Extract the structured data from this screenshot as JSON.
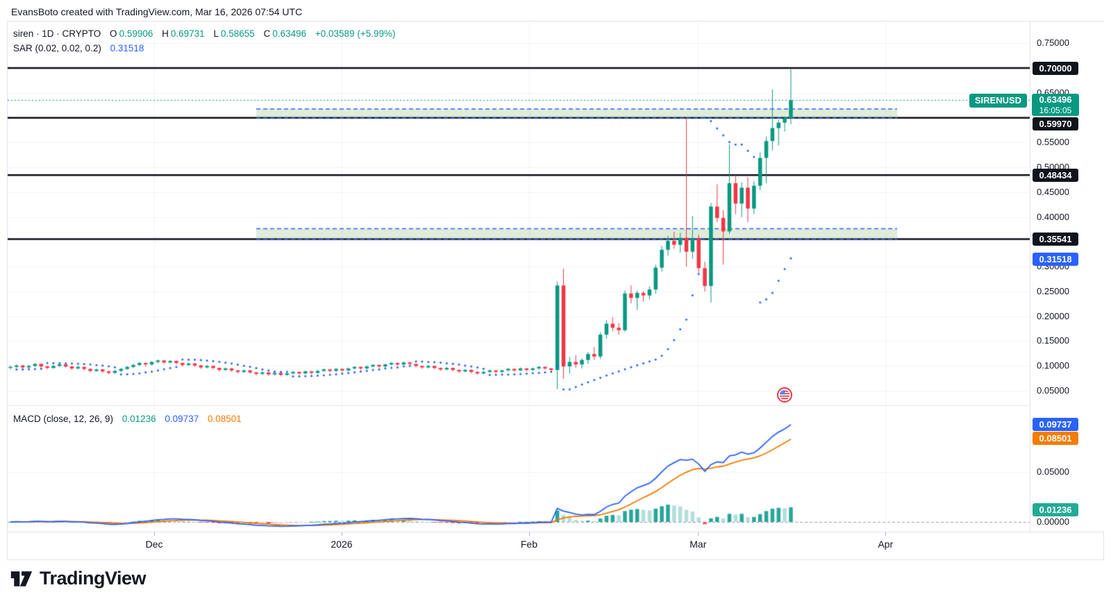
{
  "attribution": "EvansBoto created with TradingView.com, Mar 16, 2026 07:54 UTC",
  "legend": {
    "title": "siren · 1D · CRYPTO",
    "items": [
      {
        "label": "O",
        "value": "0.59906"
      },
      {
        "label": "H",
        "value": "0.69731"
      },
      {
        "label": "L",
        "value": "0.58655"
      },
      {
        "label": "C",
        "value": "0.63496"
      }
    ],
    "change": "+0.03589 (+5.99%)"
  },
  "sar_legend": {
    "name": "SAR (0.02, 0.02, 0.2)",
    "value": "0.31518"
  },
  "macd_legend": {
    "name": "MACD (close, 12, 26, 9)",
    "hist": "0.01236",
    "macd": "0.09737",
    "signal": "0.08501"
  },
  "symbol_badge": {
    "label": "SIRENUSD",
    "price": "0.63496",
    "countdown": "16:05:05",
    "price_value": 0.63496,
    "bg": "#089981"
  },
  "price_axis": {
    "ticks": [
      {
        "label": "0.75000",
        "price": 0.75
      },
      {
        "label": "0.65000",
        "price": 0.65
      },
      {
        "label": "0.55000",
        "price": 0.55
      },
      {
        "label": "0.50000",
        "price": 0.5
      },
      {
        "label": "0.45000",
        "price": 0.45
      },
      {
        "label": "0.40000",
        "price": 0.4
      },
      {
        "label": "0.30000",
        "price": 0.3
      },
      {
        "label": "0.25000",
        "price": 0.25
      },
      {
        "label": "0.20000",
        "price": 0.2
      },
      {
        "label": "0.15000",
        "price": 0.15
      },
      {
        "label": "0.10000",
        "price": 0.1
      },
      {
        "label": "0.05000",
        "price": 0.05
      }
    ],
    "badges": [
      {
        "label": "0.70000",
        "price": 0.7,
        "bg": "#10141c"
      },
      {
        "label": "0.59970",
        "price": 0.5997,
        "bg": "#10141c"
      },
      {
        "label": "0.48434",
        "price": 0.48434,
        "bg": "#10141c"
      },
      {
        "label": "0.35541",
        "price": 0.35541,
        "bg": "#10141c"
      },
      {
        "label": "0.31518",
        "price": 0.31518,
        "bg": "#2962FF"
      }
    ]
  },
  "macd_axis": {
    "ticks": [
      {
        "label": "0.05000",
        "value": 0.05
      },
      {
        "label": "0.00000",
        "value": 0.0
      }
    ],
    "badges": [
      {
        "label": "0.09737",
        "value": 0.09737,
        "bg": "#2962FF"
      },
      {
        "label": "0.08501",
        "value": 0.08501,
        "bg": "#F57C00"
      },
      {
        "label": "0.01236",
        "value": 0.01236,
        "bg": "#22AB94"
      }
    ]
  },
  "logo_text": "TradingView",
  "colors": {
    "up": "#089981",
    "down": "#F23645",
    "sar": "#2962FF",
    "macd_line": "#2962FF",
    "signal_line": "#F57C00",
    "hist_up": "#26A69A",
    "hist_up_fade": "#B2DFDB",
    "hist_down": "#FF5252",
    "hist_down_fade": "#FFCDD2",
    "level": "#0c0f17",
    "grid": "#f0f3fa",
    "zone_fill": "rgba(111,168,80,0.22)",
    "zone_border": "#2962FF",
    "price_line": "#089981",
    "zero_line": "#9aa0aa"
  },
  "chart_data": {
    "type": "candlestick",
    "interval": "1D",
    "symbol": "SIRENUSD",
    "price_line": 0.63496,
    "levels": [
      0.7,
      0.5997,
      0.48434,
      0.35541
    ],
    "zones": [
      {
        "from": 40,
        "to": 144.3,
        "low": 0.5997,
        "high": 0.6175
      },
      {
        "from": 40,
        "to": 144.3,
        "low": 0.35541,
        "high": 0.3765
      }
    ],
    "months": [
      {
        "label": "Dec",
        "i": 23.4
      },
      {
        "label": "2026",
        "i": 53.9
      },
      {
        "label": "Feb",
        "i": 84.4
      },
      {
        "label": "Mar",
        "i": 111.9
      },
      {
        "label": "Apr",
        "i": 142.4
      }
    ],
    "sar_params": [
      0.02,
      0.02,
      0.2
    ],
    "macd_params": [
      12,
      26,
      9
    ],
    "macd_last": {
      "macd": 0.09737,
      "signal": 0.08501,
      "hist": 0.01236
    },
    "event_flag": {
      "i": 126,
      "label": "US economic event"
    },
    "candles": [
      [
        0.096,
        0.101,
        0.093,
        0.098
      ],
      [
        0.098,
        0.103,
        0.096,
        0.101
      ],
      [
        0.101,
        0.102,
        0.094,
        0.097
      ],
      [
        0.097,
        0.102,
        0.095,
        0.1
      ],
      [
        0.1,
        0.106,
        0.098,
        0.104
      ],
      [
        0.104,
        0.105,
        0.096,
        0.099
      ],
      [
        0.099,
        0.101,
        0.093,
        0.096
      ],
      [
        0.096,
        0.102,
        0.094,
        0.1
      ],
      [
        0.1,
        0.105,
        0.098,
        0.103
      ],
      [
        0.103,
        0.104,
        0.096,
        0.099
      ],
      [
        0.099,
        0.1,
        0.092,
        0.095
      ],
      [
        0.095,
        0.1,
        0.093,
        0.098
      ],
      [
        0.098,
        0.099,
        0.091,
        0.094
      ],
      [
        0.094,
        0.096,
        0.087,
        0.09
      ],
      [
        0.09,
        0.095,
        0.088,
        0.093
      ],
      [
        0.093,
        0.094,
        0.086,
        0.089
      ],
      [
        0.089,
        0.091,
        0.083,
        0.086
      ],
      [
        0.086,
        0.092,
        0.084,
        0.09
      ],
      [
        0.09,
        0.096,
        0.088,
        0.094
      ],
      [
        0.094,
        0.1,
        0.092,
        0.098
      ],
      [
        0.098,
        0.104,
        0.096,
        0.102
      ],
      [
        0.102,
        0.108,
        0.1,
        0.106
      ],
      [
        0.106,
        0.107,
        0.099,
        0.103
      ],
      [
        0.103,
        0.11,
        0.101,
        0.108
      ],
      [
        0.108,
        0.113,
        0.105,
        0.111
      ],
      [
        0.111,
        0.112,
        0.104,
        0.107
      ],
      [
        0.107,
        0.112,
        0.105,
        0.11
      ],
      [
        0.11,
        0.111,
        0.103,
        0.106
      ],
      [
        0.106,
        0.107,
        0.099,
        0.102
      ],
      [
        0.102,
        0.107,
        0.1,
        0.105
      ],
      [
        0.105,
        0.106,
        0.098,
        0.101
      ],
      [
        0.101,
        0.102,
        0.094,
        0.097
      ],
      [
        0.097,
        0.102,
        0.095,
        0.1
      ],
      [
        0.1,
        0.101,
        0.093,
        0.096
      ],
      [
        0.096,
        0.097,
        0.089,
        0.092
      ],
      [
        0.092,
        0.097,
        0.09,
        0.095
      ],
      [
        0.095,
        0.096,
        0.088,
        0.091
      ],
      [
        0.091,
        0.092,
        0.085,
        0.088
      ],
      [
        0.088,
        0.093,
        0.086,
        0.091
      ],
      [
        0.091,
        0.092,
        0.084,
        0.087
      ],
      [
        0.087,
        0.088,
        0.081,
        0.084
      ],
      [
        0.084,
        0.089,
        0.082,
        0.087
      ],
      [
        0.087,
        0.088,
        0.08,
        0.083
      ],
      [
        0.083,
        0.088,
        0.081,
        0.086
      ],
      [
        0.086,
        0.087,
        0.079,
        0.082
      ],
      [
        0.082,
        0.087,
        0.08,
        0.085
      ],
      [
        0.085,
        0.09,
        0.083,
        0.088
      ],
      [
        0.088,
        0.089,
        0.082,
        0.085
      ],
      [
        0.085,
        0.091,
        0.083,
        0.089
      ],
      [
        0.089,
        0.09,
        0.083,
        0.086
      ],
      [
        0.086,
        0.092,
        0.084,
        0.09
      ],
      [
        0.09,
        0.095,
        0.088,
        0.093
      ],
      [
        0.093,
        0.094,
        0.087,
        0.09
      ],
      [
        0.09,
        0.096,
        0.088,
        0.094
      ],
      [
        0.094,
        0.095,
        0.088,
        0.091
      ],
      [
        0.091,
        0.097,
        0.089,
        0.095
      ],
      [
        0.095,
        0.1,
        0.093,
        0.098
      ],
      [
        0.098,
        0.099,
        0.092,
        0.095
      ],
      [
        0.095,
        0.101,
        0.093,
        0.099
      ],
      [
        0.099,
        0.104,
        0.097,
        0.102
      ],
      [
        0.102,
        0.103,
        0.096,
        0.099
      ],
      [
        0.099,
        0.105,
        0.097,
        0.103
      ],
      [
        0.103,
        0.108,
        0.101,
        0.106
      ],
      [
        0.106,
        0.107,
        0.1,
        0.103
      ],
      [
        0.103,
        0.109,
        0.101,
        0.107
      ],
      [
        0.107,
        0.108,
        0.101,
        0.104
      ],
      [
        0.104,
        0.105,
        0.097,
        0.1
      ],
      [
        0.1,
        0.101,
        0.094,
        0.097
      ],
      [
        0.097,
        0.102,
        0.095,
        0.1
      ],
      [
        0.1,
        0.101,
        0.093,
        0.096
      ],
      [
        0.096,
        0.097,
        0.09,
        0.093
      ],
      [
        0.093,
        0.098,
        0.091,
        0.096
      ],
      [
        0.096,
        0.097,
        0.089,
        0.092
      ],
      [
        0.092,
        0.093,
        0.086,
        0.089
      ],
      [
        0.089,
        0.094,
        0.087,
        0.092
      ],
      [
        0.092,
        0.093,
        0.085,
        0.088
      ],
      [
        0.088,
        0.089,
        0.082,
        0.085
      ],
      [
        0.085,
        0.09,
        0.083,
        0.088
      ],
      [
        0.088,
        0.093,
        0.086,
        0.091
      ],
      [
        0.091,
        0.092,
        0.085,
        0.088
      ],
      [
        0.088,
        0.093,
        0.086,
        0.091
      ],
      [
        0.091,
        0.096,
        0.089,
        0.094
      ],
      [
        0.094,
        0.095,
        0.088,
        0.091
      ],
      [
        0.091,
        0.097,
        0.09,
        0.095
      ],
      [
        0.095,
        0.096,
        0.089,
        0.092
      ],
      [
        0.092,
        0.097,
        0.09,
        0.095
      ],
      [
        0.095,
        0.1,
        0.093,
        0.098
      ],
      [
        0.098,
        0.099,
        0.092,
        0.095
      ],
      [
        0.095,
        0.096,
        0.089,
        0.092
      ],
      [
        0.092,
        0.27,
        0.053,
        0.262
      ],
      [
        0.262,
        0.296,
        0.074,
        0.099
      ],
      [
        0.099,
        0.118,
        0.085,
        0.108
      ],
      [
        0.108,
        0.122,
        0.096,
        0.103
      ],
      [
        0.103,
        0.115,
        0.095,
        0.112
      ],
      [
        0.112,
        0.128,
        0.104,
        0.124
      ],
      [
        0.124,
        0.138,
        0.112,
        0.119
      ],
      [
        0.119,
        0.168,
        0.114,
        0.163
      ],
      [
        0.163,
        0.192,
        0.155,
        0.185
      ],
      [
        0.185,
        0.198,
        0.17,
        0.177
      ],
      [
        0.177,
        0.186,
        0.163,
        0.172
      ],
      [
        0.172,
        0.252,
        0.168,
        0.246
      ],
      [
        0.246,
        0.262,
        0.226,
        0.237
      ],
      [
        0.237,
        0.252,
        0.213,
        0.247
      ],
      [
        0.247,
        0.251,
        0.23,
        0.242
      ],
      [
        0.242,
        0.26,
        0.234,
        0.254
      ],
      [
        0.254,
        0.304,
        0.246,
        0.298
      ],
      [
        0.298,
        0.342,
        0.29,
        0.334
      ],
      [
        0.334,
        0.362,
        0.322,
        0.352
      ],
      [
        0.352,
        0.37,
        0.336,
        0.344
      ],
      [
        0.344,
        0.368,
        0.328,
        0.358
      ],
      [
        0.358,
        0.6,
        0.3,
        0.33
      ],
      [
        0.33,
        0.402,
        0.316,
        0.356
      ],
      [
        0.356,
        0.364,
        0.288,
        0.297
      ],
      [
        0.297,
        0.31,
        0.25,
        0.261
      ],
      [
        0.261,
        0.428,
        0.228,
        0.421
      ],
      [
        0.421,
        0.466,
        0.39,
        0.398
      ],
      [
        0.398,
        0.414,
        0.304,
        0.371
      ],
      [
        0.371,
        0.546,
        0.366,
        0.468
      ],
      [
        0.468,
        0.484,
        0.406,
        0.427
      ],
      [
        0.427,
        0.47,
        0.4,
        0.459
      ],
      [
        0.459,
        0.48,
        0.39,
        0.417
      ],
      [
        0.417,
        0.472,
        0.406,
        0.463
      ],
      [
        0.463,
        0.53,
        0.454,
        0.519
      ],
      [
        0.519,
        0.562,
        0.468,
        0.553
      ],
      [
        0.553,
        0.657,
        0.534,
        0.579
      ],
      [
        0.579,
        0.596,
        0.544,
        0.59
      ],
      [
        0.59,
        0.602,
        0.572,
        0.599
      ],
      [
        0.599,
        0.697,
        0.587,
        0.635
      ]
    ]
  }
}
